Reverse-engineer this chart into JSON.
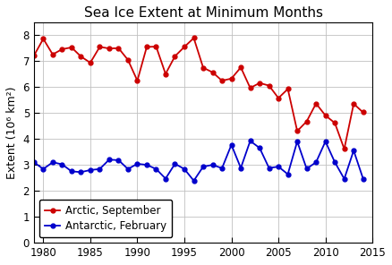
{
  "title": "Sea Ice Extent at Minimum Months",
  "xlabel": "",
  "ylabel": "Extent (10⁶ km²)",
  "xlim": [
    1979,
    2015
  ],
  "ylim": [
    0,
    8.5
  ],
  "yticks": [
    0,
    1,
    2,
    3,
    4,
    5,
    6,
    7,
    8
  ],
  "xticks": [
    1980,
    1985,
    1990,
    1995,
    2000,
    2005,
    2010,
    2015
  ],
  "arctic_years": [
    1979,
    1980,
    1981,
    1982,
    1983,
    1984,
    1985,
    1986,
    1987,
    1988,
    1989,
    1990,
    1991,
    1992,
    1993,
    1994,
    1995,
    1996,
    1997,
    1998,
    1999,
    2000,
    2001,
    2002,
    2003,
    2004,
    2005,
    2006,
    2007,
    2008,
    2009,
    2010,
    2011,
    2012,
    2013,
    2014
  ],
  "arctic_values": [
    7.2,
    7.85,
    7.25,
    7.45,
    7.52,
    7.17,
    6.93,
    7.54,
    7.48,
    7.49,
    7.04,
    6.24,
    7.54,
    7.55,
    6.5,
    7.18,
    7.54,
    7.88,
    6.74,
    6.56,
    6.24,
    6.32,
    6.75,
    5.96,
    6.15,
    6.05,
    5.57,
    5.92,
    4.3,
    4.67,
    5.36,
    4.9,
    4.61,
    3.61,
    5.35,
    5.02
  ],
  "antarctic_years": [
    1979,
    1980,
    1981,
    1982,
    1983,
    1984,
    1985,
    1986,
    1987,
    1988,
    1989,
    1990,
    1991,
    1992,
    1993,
    1994,
    1995,
    1996,
    1997,
    1998,
    1999,
    2000,
    2001,
    2002,
    2003,
    2004,
    2005,
    2006,
    2007,
    2008,
    2009,
    2010,
    2011,
    2012,
    2013,
    2014
  ],
  "antarctic_values": [
    3.1,
    2.84,
    3.1,
    3.02,
    2.75,
    2.72,
    2.8,
    2.84,
    3.2,
    3.18,
    2.84,
    3.04,
    3.0,
    2.84,
    2.47,
    3.04,
    2.84,
    2.39,
    2.93,
    3.0,
    2.87,
    3.77,
    2.88,
    3.92,
    3.65,
    2.88,
    2.93,
    2.64,
    3.9,
    2.85,
    3.1,
    3.9,
    3.1,
    2.46,
    3.55,
    2.47
  ],
  "arctic_color": "#cc0000",
  "antarctic_color": "#0000cc",
  "grid_color": "#c0c0c0",
  "bg_color": "#ffffff",
  "marker": "o",
  "markersize": 3.5,
  "linewidth": 1.3,
  "legend_loc": "lower left",
  "legend_labels": [
    "Arctic, September",
    "Antarctic, February"
  ],
  "title_fontsize": 11,
  "label_fontsize": 9,
  "tick_fontsize": 8.5,
  "legend_fontsize": 8.5
}
